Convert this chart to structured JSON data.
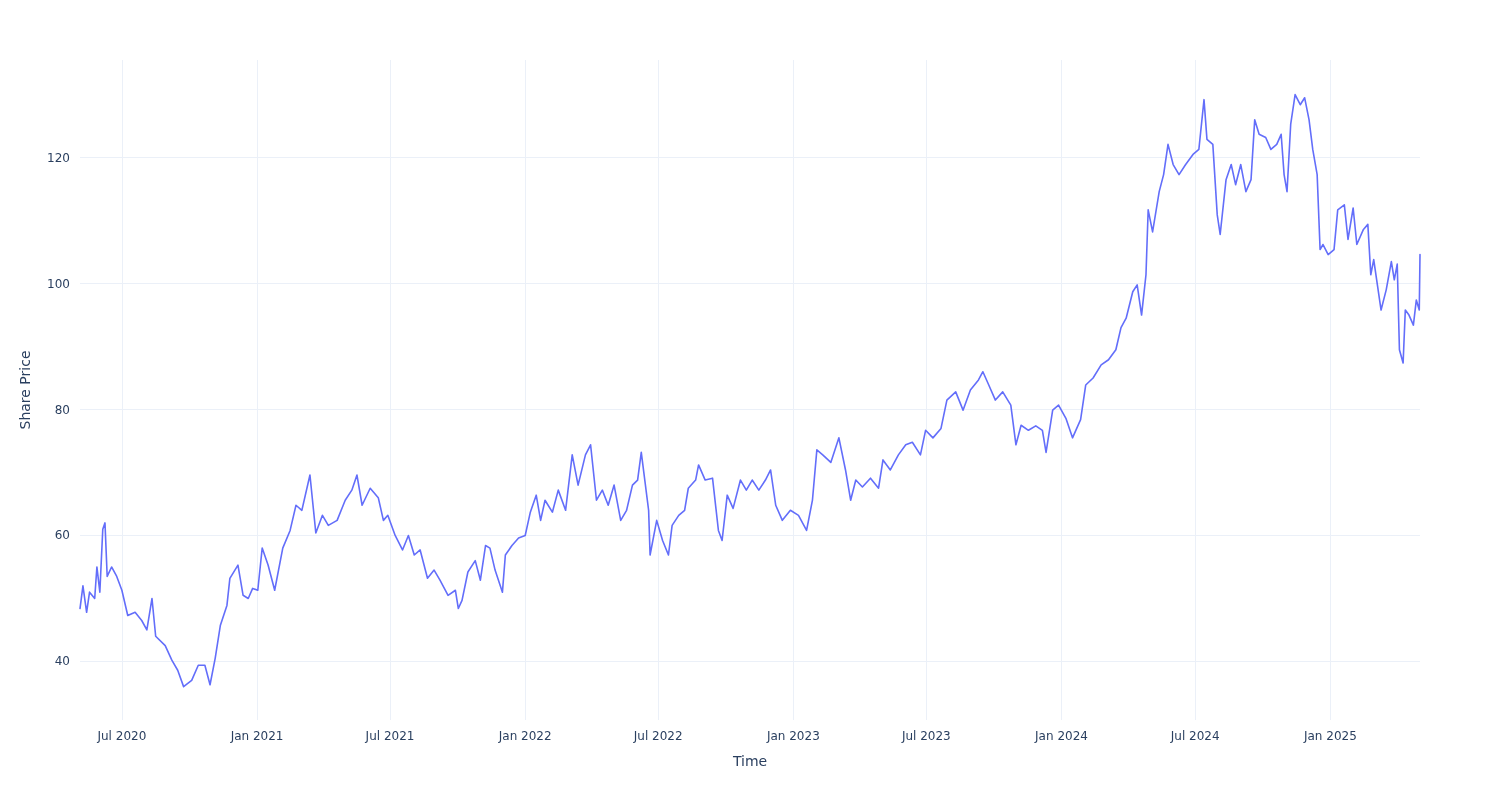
{
  "chart_data": {
    "type": "line",
    "xlabel": "Time",
    "ylabel": "Share Price",
    "grid": true,
    "marker": "none",
    "line_style": "solid",
    "xlim": [
      "2020-05-05",
      "2025-05-03"
    ],
    "ylim": [
      30.7,
      135.5
    ],
    "xticks": [
      {
        "value": "2020-07-01",
        "label": "Jul 2020"
      },
      {
        "value": "2021-01-01",
        "label": "Jan 2021"
      },
      {
        "value": "2021-07-01",
        "label": "Jul 2021"
      },
      {
        "value": "2022-01-01",
        "label": "Jan 2022"
      },
      {
        "value": "2022-07-01",
        "label": "Jul 2022"
      },
      {
        "value": "2023-01-01",
        "label": "Jan 2023"
      },
      {
        "value": "2023-07-01",
        "label": "Jul 2023"
      },
      {
        "value": "2024-01-01",
        "label": "Jan 2024"
      },
      {
        "value": "2024-07-01",
        "label": "Jul 2024"
      },
      {
        "value": "2025-01-01",
        "label": "Jan 2025"
      }
    ],
    "yticks": [
      40,
      60,
      80,
      100,
      120
    ],
    "x": [
      "2020-05-05",
      "2020-05-09",
      "2020-05-14",
      "2020-05-18",
      "2020-05-25",
      "2020-05-28",
      "2020-06-01",
      "2020-06-05",
      "2020-06-08",
      "2020-06-11",
      "2020-06-17",
      "2020-06-24",
      "2020-07-01",
      "2020-07-09",
      "2020-07-19",
      "2020-07-28",
      "2020-08-04",
      "2020-08-11",
      "2020-08-16",
      "2020-08-29",
      "2020-09-07",
      "2020-09-15",
      "2020-09-23",
      "2020-10-04",
      "2020-10-13",
      "2020-10-22",
      "2020-10-29",
      "2020-11-05",
      "2020-11-12",
      "2020-11-21",
      "2020-11-25",
      "2020-12-06",
      "2020-12-13",
      "2020-12-20",
      "2020-12-26",
      "2021-01-02",
      "2021-01-08",
      "2021-01-16",
      "2021-01-25",
      "2021-02-05",
      "2021-02-15",
      "2021-02-23",
      "2021-03-03",
      "2021-03-14",
      "2021-03-22",
      "2021-03-31",
      "2021-04-08",
      "2021-04-20",
      "2021-05-01",
      "2021-05-10",
      "2021-05-17",
      "2021-05-24",
      "2021-06-04",
      "2021-06-15",
      "2021-06-22",
      "2021-06-28",
      "2021-07-08",
      "2021-07-18",
      "2021-07-26",
      "2021-08-03",
      "2021-08-11",
      "2021-08-21",
      "2021-08-30",
      "2021-09-07",
      "2021-09-18",
      "2021-09-28",
      "2021-10-02",
      "2021-10-07",
      "2021-10-15",
      "2021-10-25",
      "2021-11-01",
      "2021-11-08",
      "2021-11-14",
      "2021-11-21",
      "2021-12-01",
      "2021-12-05",
      "2021-12-14",
      "2021-12-23",
      "2022-01-01",
      "2022-01-08",
      "2022-01-16",
      "2022-01-22",
      "2022-01-28",
      "2022-02-07",
      "2022-02-15",
      "2022-02-25",
      "2022-03-06",
      "2022-03-14",
      "2022-03-24",
      "2022-03-31",
      "2022-04-08",
      "2022-04-16",
      "2022-04-24",
      "2022-05-02",
      "2022-05-11",
      "2022-05-19",
      "2022-05-27",
      "2022-06-03",
      "2022-06-08",
      "2022-06-18",
      "2022-06-20",
      "2022-06-29",
      "2022-07-07",
      "2022-07-15",
      "2022-07-20",
      "2022-07-29",
      "2022-08-06",
      "2022-08-11",
      "2022-08-21",
      "2022-08-25",
      "2022-09-03",
      "2022-09-13",
      "2022-09-21",
      "2022-09-26",
      "2022-10-03",
      "2022-10-11",
      "2022-10-21",
      "2022-10-29",
      "2022-11-06",
      "2022-11-15",
      "2022-11-24",
      "2022-12-01",
      "2022-12-08",
      "2022-12-17",
      "2022-12-28",
      "2023-01-08",
      "2023-01-19",
      "2023-01-27",
      "2023-02-02",
      "2023-02-10",
      "2023-02-21",
      "2023-03-04",
      "2023-03-13",
      "2023-03-20",
      "2023-03-27",
      "2023-04-05",
      "2023-04-16",
      "2023-04-27",
      "2023-05-03",
      "2023-05-13",
      "2023-05-24",
      "2023-06-03",
      "2023-06-12",
      "2023-06-23",
      "2023-06-30",
      "2023-07-10",
      "2023-07-21",
      "2023-07-29",
      "2023-08-10",
      "2023-08-20",
      "2023-08-30",
      "2023-09-10",
      "2023-09-16",
      "2023-09-24",
      "2023-10-03",
      "2023-10-13",
      "2023-10-24",
      "2023-10-31",
      "2023-11-07",
      "2023-11-17",
      "2023-11-27",
      "2023-12-06",
      "2023-12-11",
      "2023-12-20",
      "2023-12-28",
      "2024-01-07",
      "2024-01-16",
      "2024-01-27",
      "2024-02-03",
      "2024-02-13",
      "2024-02-24",
      "2024-03-05",
      "2024-03-15",
      "2024-03-22",
      "2024-03-29",
      "2024-04-07",
      "2024-04-13",
      "2024-04-19",
      "2024-04-25",
      "2024-04-28",
      "2024-05-04",
      "2024-05-13",
      "2024-05-19",
      "2024-05-25",
      "2024-06-01",
      "2024-06-09",
      "2024-06-18",
      "2024-06-28",
      "2024-07-06",
      "2024-07-13",
      "2024-07-17",
      "2024-07-25",
      "2024-07-31",
      "2024-08-04",
      "2024-08-12",
      "2024-08-19",
      "2024-08-25",
      "2024-09-01",
      "2024-09-08",
      "2024-09-15",
      "2024-09-20",
      "2024-09-26",
      "2024-10-05",
      "2024-10-12",
      "2024-10-20",
      "2024-10-26",
      "2024-10-30",
      "2024-11-03",
      "2024-11-08",
      "2024-11-14",
      "2024-11-21",
      "2024-11-27",
      "2024-12-03",
      "2024-12-08",
      "2024-12-14",
      "2024-12-18",
      "2024-12-22",
      "2024-12-29",
      "2025-01-06",
      "2025-01-11",
      "2025-01-20",
      "2025-01-25",
      "2025-02-01",
      "2025-02-06",
      "2025-02-15",
      "2025-02-21",
      "2025-02-25",
      "2025-03-01",
      "2025-03-06",
      "2025-03-11",
      "2025-03-18",
      "2025-03-25",
      "2025-03-29",
      "2025-04-02",
      "2025-04-05",
      "2025-04-10",
      "2025-04-13",
      "2025-04-18",
      "2025-04-24",
      "2025-04-28",
      "2025-05-02",
      "2025-05-03"
    ],
    "series": [
      {
        "color": "#636efa",
        "values": [
          48.4,
          52,
          47.8,
          51,
          50,
          55,
          51,
          61,
          62,
          53.5,
          55,
          53.5,
          51.3,
          47.3,
          47.8,
          46.5,
          45,
          50,
          44,
          42.5,
          40.2,
          38.6,
          36,
          37,
          39.4,
          39.4,
          36.3,
          40.5,
          45.7,
          48.9,
          53.2,
          55.3,
          50.5,
          50,
          51.6,
          51.3,
          58,
          55.3,
          51.3,
          58,
          60.8,
          64.8,
          64,
          69.6,
          60.4,
          63.2,
          61.6,
          62.4,
          65.6,
          67.2,
          69.6,
          64.8,
          67.5,
          66,
          62.4,
          63.2,
          60,
          57.7,
          60,
          56.9,
          57.7,
          53.2,
          54.5,
          52.9,
          50.5,
          51.3,
          48.4,
          49.7,
          54.2,
          56,
          52.9,
          58.4,
          58,
          54.5,
          51,
          56.9,
          58.4,
          59.6,
          60,
          63.7,
          66.4,
          62.4,
          65.6,
          63.7,
          67.2,
          64,
          72.8,
          68,
          72.8,
          74.4,
          65.6,
          67.2,
          64.8,
          68,
          62.4,
          64,
          68,
          68.8,
          73.2,
          64,
          56.9,
          62.4,
          59.2,
          56.9,
          61.6,
          63.2,
          64,
          67.5,
          68.8,
          71.2,
          68.8,
          69.1,
          60.8,
          59.2,
          66.4,
          64.3,
          68.8,
          67.2,
          68.8,
          67.2,
          68.8,
          70.4,
          64.8,
          62.4,
          64,
          63.2,
          60.8,
          65.6,
          73.6,
          72.8,
          71.6,
          75.5,
          70.4,
          65.6,
          68.8,
          67.7,
          69.1,
          67.5,
          72,
          70.4,
          72.8,
          74.4,
          74.8,
          72.8,
          76.7,
          75.5,
          77,
          81.5,
          82.8,
          79.9,
          83.1,
          84.7,
          86,
          83.9,
          81.5,
          82.8,
          80.7,
          74.4,
          77.5,
          76.7,
          77.4,
          76.7,
          73.2,
          79.9,
          80.7,
          78.6,
          75.5,
          78.4,
          83.9,
          85,
          87.1,
          87.9,
          89.5,
          93,
          94.5,
          98.7,
          99.8,
          95,
          101.4,
          111.7,
          108.2,
          114.6,
          117.3,
          122.1,
          118.9,
          117.3,
          118.9,
          120.5,
          121.3,
          129.2,
          122.9,
          122.1,
          110.9,
          107.8,
          116.5,
          118.9,
          115.7,
          118.9,
          114.6,
          116.5,
          126,
          123.7,
          123.2,
          121.3,
          122.1,
          123.7,
          117.3,
          114.6,
          125.3,
          130,
          128.4,
          129.5,
          126,
          121.3,
          117.3,
          105.4,
          106.2,
          104.6,
          105.4,
          111.7,
          112.5,
          107,
          112,
          106.2,
          108.6,
          109.4,
          101.4,
          103.8,
          99.8,
          95.8,
          99,
          103.5,
          100.6,
          103.1,
          89.5,
          87.4,
          95.8,
          95,
          93.4,
          97.4,
          95.8,
          104.6
        ]
      }
    ]
  }
}
